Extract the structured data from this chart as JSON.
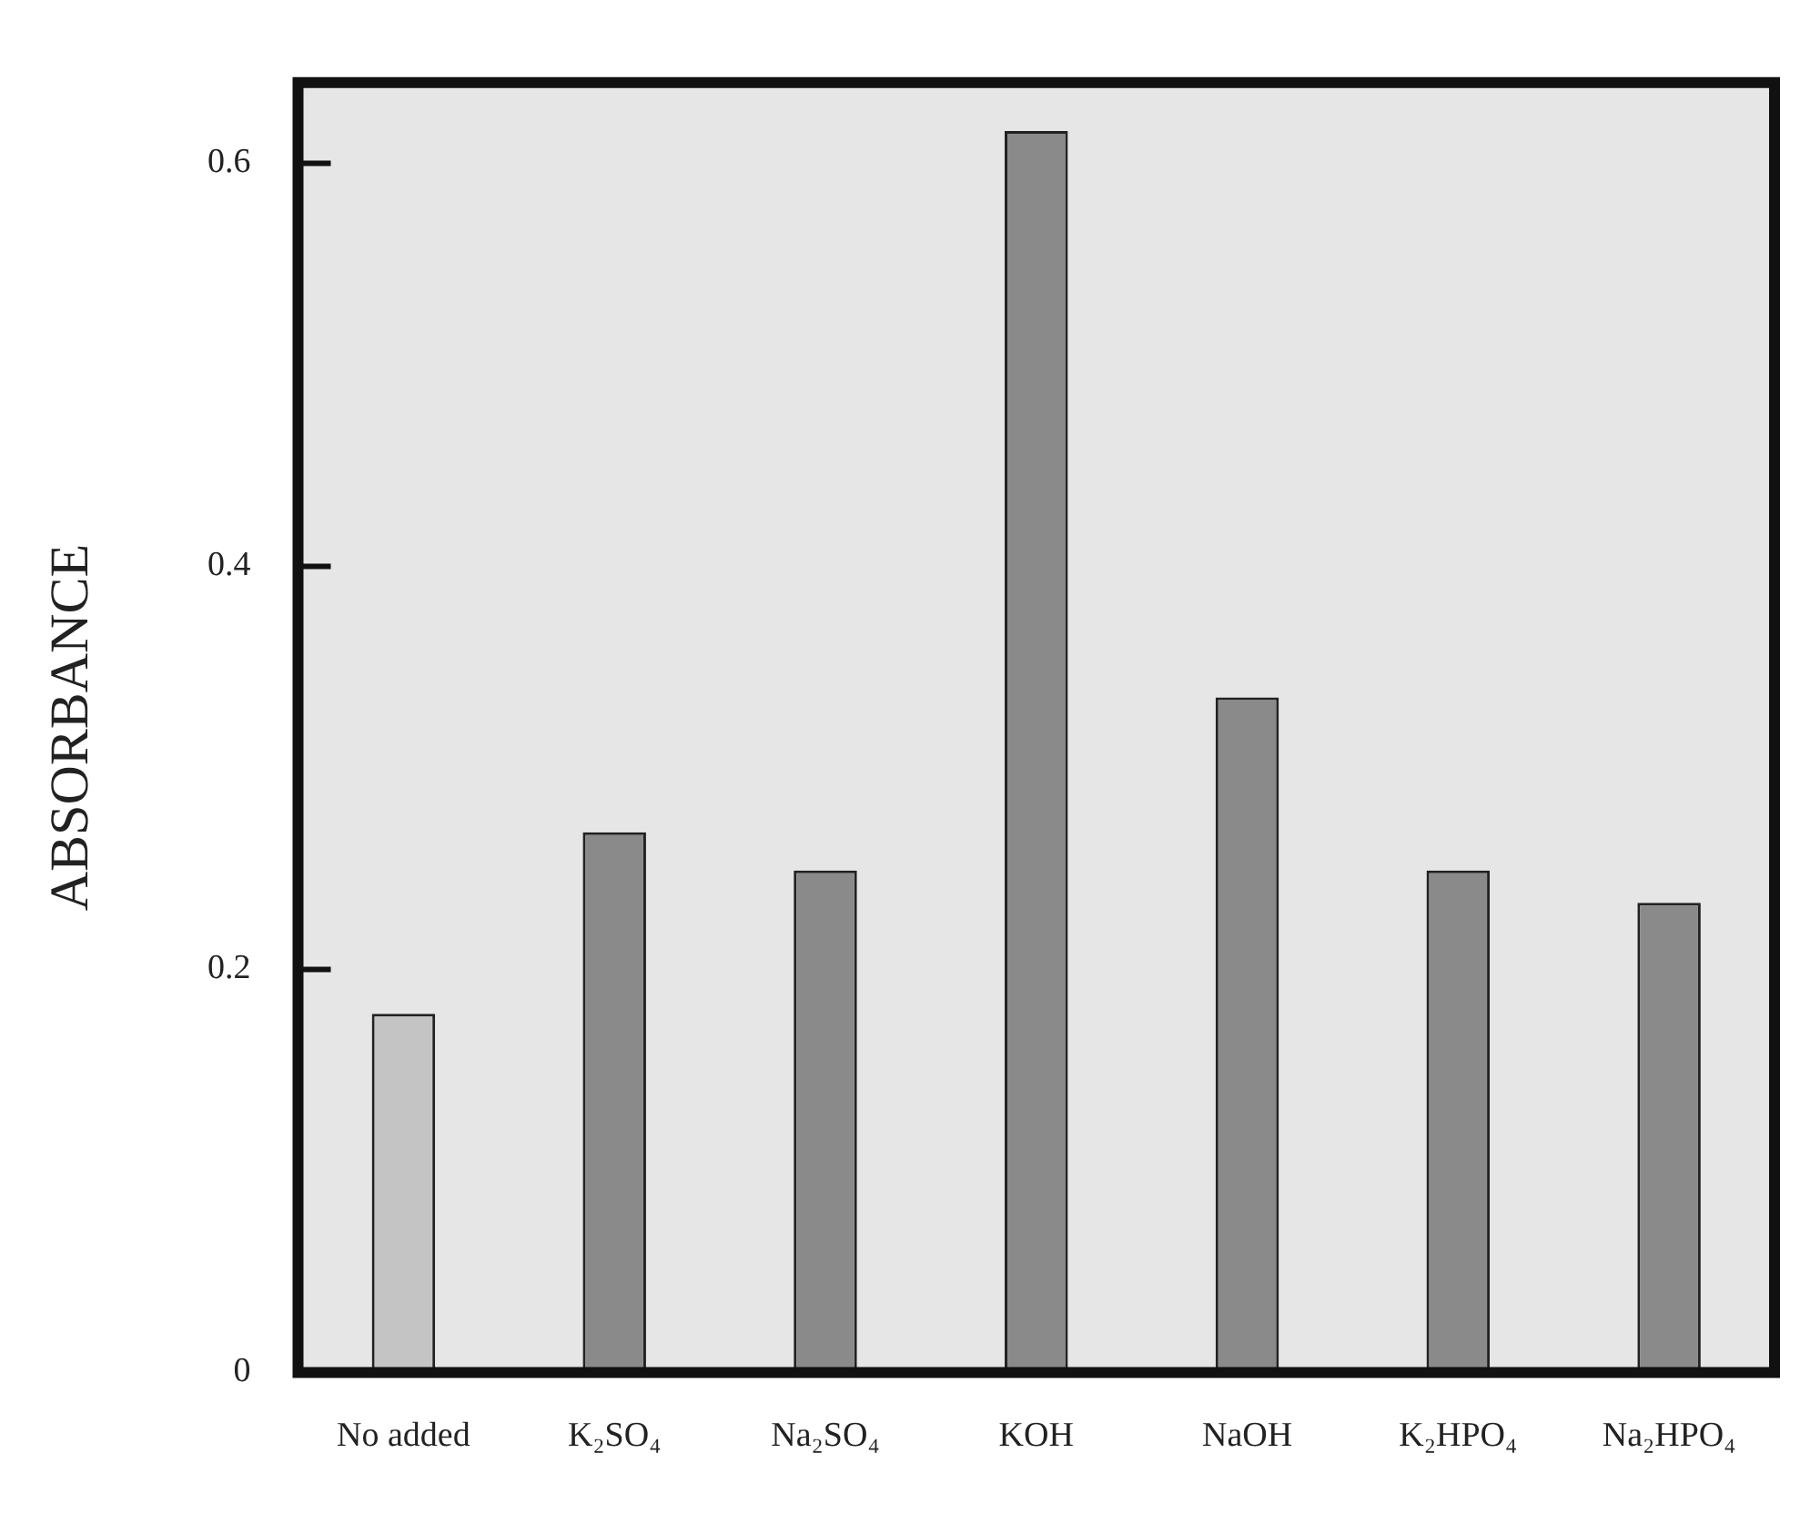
{
  "chart_data": {
    "type": "bar",
    "ylabel": "ABSORBANCE",
    "categories": [
      "No added",
      "K₂SO₄",
      "Na₂SO₄",
      "KOH",
      "NaOH",
      "K₂HPO₄",
      "Na₂HPO₄"
    ],
    "values": [
      0.178,
      0.268,
      0.249,
      0.616,
      0.335,
      0.249,
      0.233
    ],
    "colors": [
      "#c4c4c4",
      "#8a8a8a",
      "#8a8a8a",
      "#8a8a8a",
      "#8a8a8a",
      "#8a8a8a",
      "#8a8a8a"
    ],
    "ylim": [
      0,
      0.64
    ],
    "yticks": [
      0,
      0.2,
      0.4,
      0.6
    ],
    "legend": false
  }
}
